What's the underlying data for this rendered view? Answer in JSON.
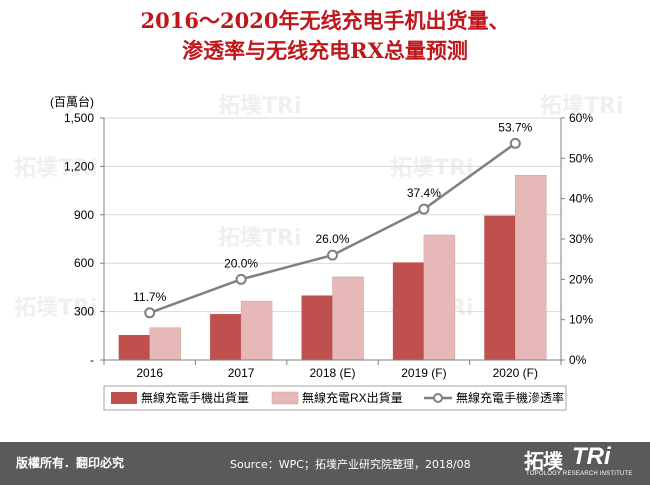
{
  "title": {
    "line1": "2016～2020年无线充电手机出货量、",
    "line2": "渗透率与无线充电RX总量预测"
  },
  "footer": {
    "copyright": "版權所有．翻印必究",
    "source": "Source：WPC；拓墣产业研究院整理，2018/08",
    "logo_cn": "拓墣",
    "logo_tri": "TRi",
    "logo_sub": "TOPOLOGY RESEARCH INSTITUTE"
  },
  "watermark": {
    "text": "拓墣TRi"
  },
  "colors": {
    "title": "#c0171c",
    "shipments": "#c0504d",
    "rx": "#e6b8b7",
    "rate": "#808080",
    "footer": "#5a5a5a"
  },
  "chart_data": {
    "type": "bar",
    "categories": [
      "2016",
      "2017",
      "2018 (E)",
      "2019 (F)",
      "2020 (F)"
    ],
    "unit_label": "(百萬台)",
    "y_left": {
      "min": 0,
      "max": 1500,
      "ticks": [
        "-",
        "300",
        "600",
        "900",
        "1,200",
        "1,500"
      ]
    },
    "y_right": {
      "min": 0,
      "max": 60,
      "ticks": [
        "0%",
        "10%",
        "20%",
        "30%",
        "40%",
        "50%",
        "60%"
      ]
    },
    "series": [
      {
        "name": "無線充電手機出貨量",
        "type": "bar",
        "axis": "left",
        "values": [
          155,
          285,
          400,
          605,
          895
        ]
      },
      {
        "name": "無線充電RX出貨量",
        "type": "bar",
        "axis": "left",
        "values": [
          200,
          365,
          515,
          775,
          1145
        ]
      },
      {
        "name": "無線充電手機滲透率",
        "type": "line",
        "axis": "right",
        "values": [
          11.7,
          20.0,
          26.0,
          37.4,
          53.7
        ],
        "labels": [
          "11.7%",
          "20.0%",
          "26.0%",
          "37.4%",
          "53.7%"
        ]
      }
    ],
    "grid": true,
    "legend_position": "bottom"
  }
}
